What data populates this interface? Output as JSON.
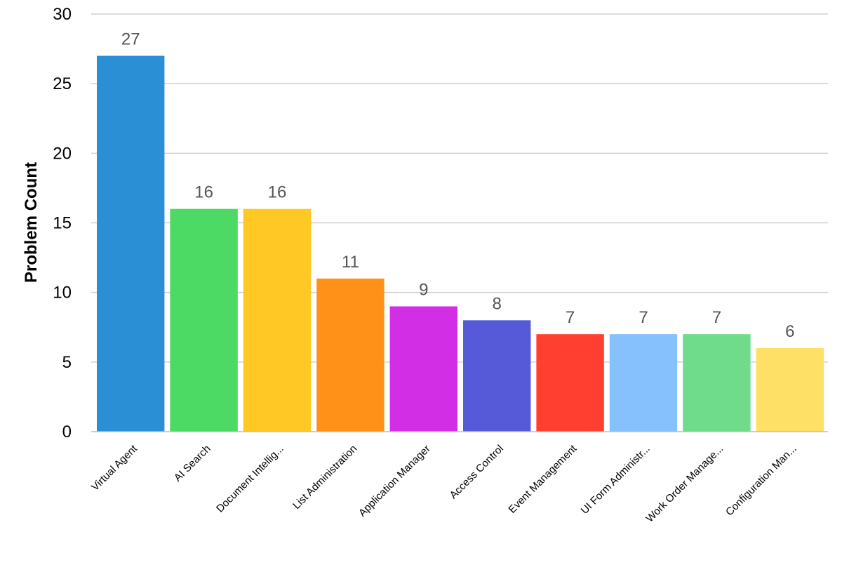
{
  "chart_data": {
    "type": "bar",
    "title": "",
    "xlabel": "",
    "ylabel": "Problem Count",
    "ylim": [
      0,
      30
    ],
    "yticks": [
      0,
      5,
      10,
      15,
      20,
      25,
      30
    ],
    "grid": true,
    "legend": "none",
    "categories": [
      "Virtual Agent",
      "AI Search",
      "Document Intellig...",
      "List Administration",
      "Application Manager",
      "Access Control",
      "Event Management",
      "UI Form Administr...",
      "Work Order Manage...",
      "Configuration Man..."
    ],
    "values": [
      27,
      16,
      16,
      11,
      9,
      8,
      7,
      7,
      7,
      6
    ],
    "colors": [
      "#2a8fd4",
      "#4cd964",
      "#ffc824",
      "#ff9118",
      "#d12ee6",
      "#565ad8",
      "#ff3f30",
      "#86c0fd",
      "#6fdc8c",
      "#ffe066"
    ]
  }
}
